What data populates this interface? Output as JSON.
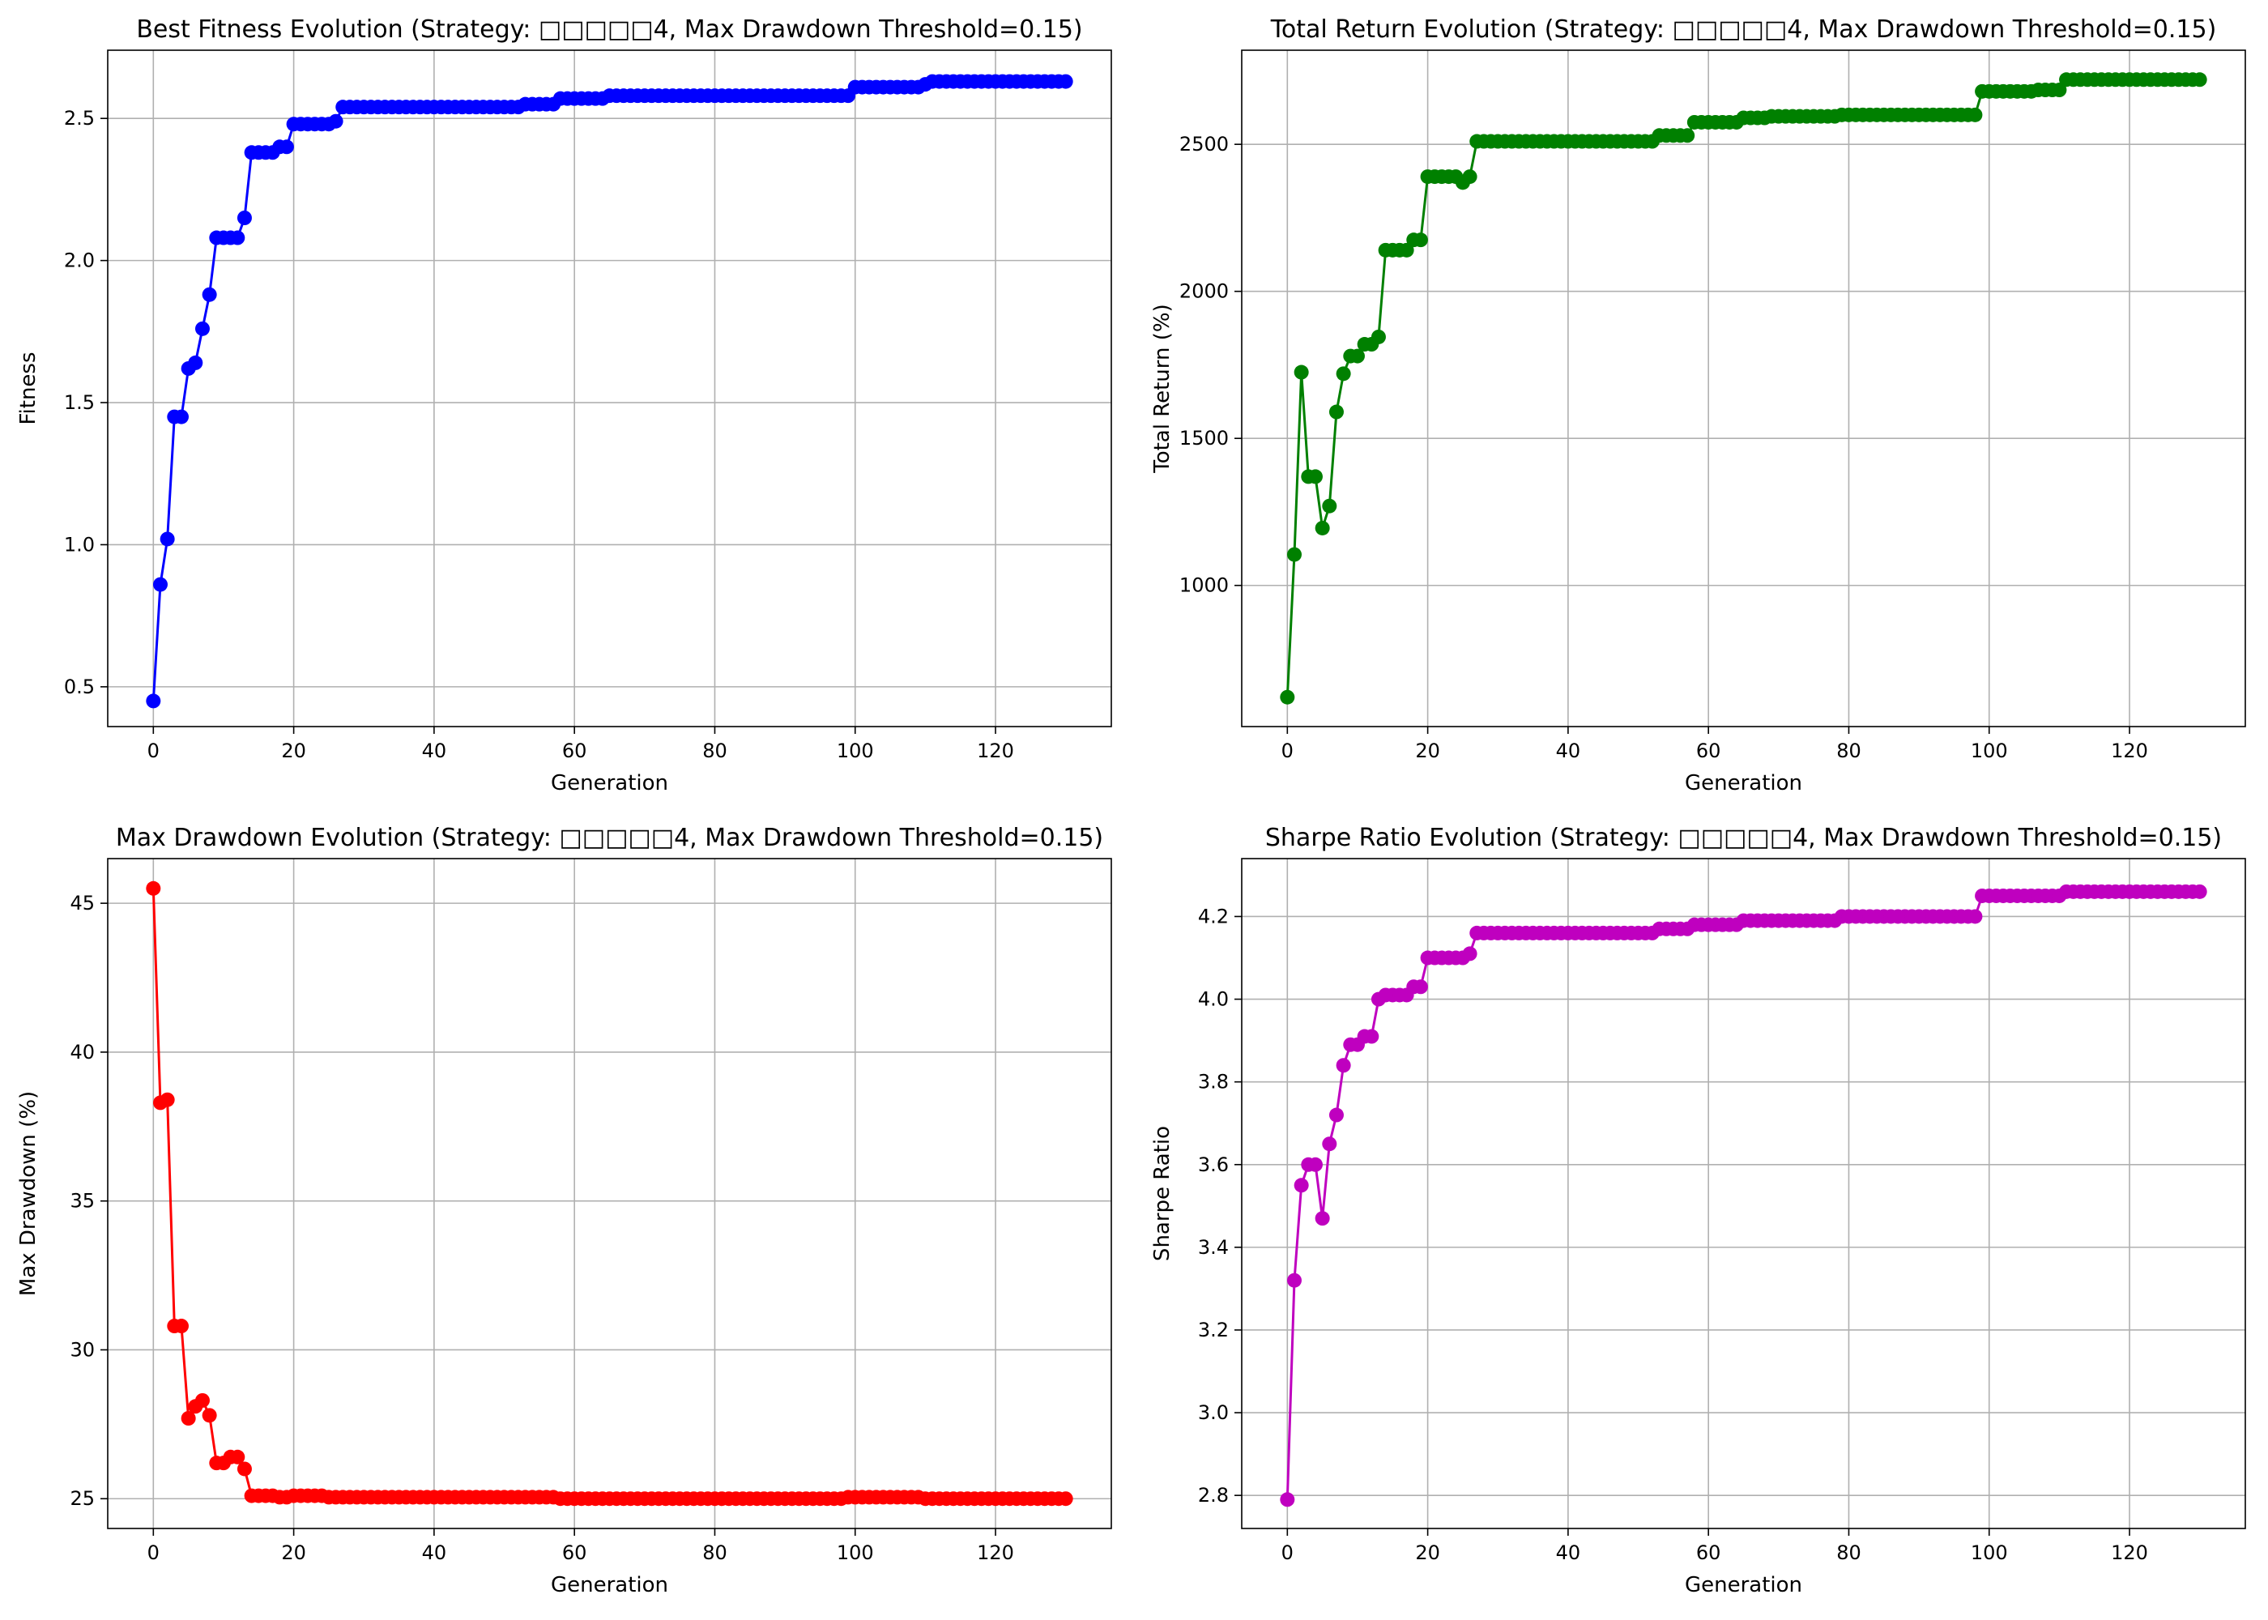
{
  "chart_data": [
    {
      "type": "line",
      "title": "Best Fitness Evolution (Strategy: □□□□□4, Max Drawdown Threshold=0.15)",
      "xlabel": "Generation",
      "ylabel": "Fitness",
      "xlim": [
        -6.5,
        136.5
      ],
      "ylim": [
        0.36,
        2.74
      ],
      "xticks": [
        0,
        20,
        40,
        60,
        80,
        100,
        120
      ],
      "yticks": [
        0.5,
        1.0,
        1.5,
        2.0,
        2.5
      ],
      "ytick_labels": [
        "0.5",
        "1.0",
        "1.5",
        "2.0",
        "2.5"
      ],
      "grid": true,
      "color": "#0000ff",
      "x_start": 0,
      "values": [
        0.45,
        0.86,
        1.02,
        1.45,
        1.45,
        1.62,
        1.64,
        1.76,
        1.88,
        2.08,
        2.08,
        2.08,
        2.08,
        2.15,
        2.38,
        2.38,
        2.38,
        2.38,
        2.4,
        2.4,
        2.48,
        2.48,
        2.48,
        2.48,
        2.48,
        2.48,
        2.49,
        2.54,
        2.54,
        2.54,
        2.54,
        2.54,
        2.54,
        2.54,
        2.54,
        2.54,
        2.54,
        2.54,
        2.54,
        2.54,
        2.54,
        2.54,
        2.54,
        2.54,
        2.54,
        2.54,
        2.54,
        2.54,
        2.54,
        2.54,
        2.54,
        2.54,
        2.54,
        2.55,
        2.55,
        2.55,
        2.55,
        2.55,
        2.57,
        2.57,
        2.57,
        2.57,
        2.57,
        2.57,
        2.57,
        2.58,
        2.58,
        2.58,
        2.58,
        2.58,
        2.58,
        2.58,
        2.58,
        2.58,
        2.58,
        2.58,
        2.58,
        2.58,
        2.58,
        2.58,
        2.58,
        2.58,
        2.58,
        2.58,
        2.58,
        2.58,
        2.58,
        2.58,
        2.58,
        2.58,
        2.58,
        2.58,
        2.58,
        2.58,
        2.58,
        2.58,
        2.58,
        2.58,
        2.58,
        2.58,
        2.61,
        2.61,
        2.61,
        2.61,
        2.61,
        2.61,
        2.61,
        2.61,
        2.61,
        2.61,
        2.62,
        2.63,
        2.63,
        2.63,
        2.63,
        2.63,
        2.63,
        2.63,
        2.63,
        2.63,
        2.63,
        2.63,
        2.63,
        2.63,
        2.63,
        2.63,
        2.63,
        2.63,
        2.63,
        2.63,
        2.63
      ]
    },
    {
      "type": "line",
      "title": "Total Return Evolution (Strategy: □□□□□4, Max Drawdown Threshold=0.15)",
      "xlabel": "Generation",
      "ylabel": "Total Return (%)",
      "xlim": [
        -6.5,
        136.5
      ],
      "ylim": [
        520,
        2820
      ],
      "xticks": [
        0,
        20,
        40,
        60,
        80,
        100,
        120
      ],
      "yticks": [
        1000,
        1500,
        2000,
        2500
      ],
      "ytick_labels": [
        "1000",
        "1500",
        "2000",
        "2500"
      ],
      "grid": true,
      "color": "#008000",
      "x_start": 0,
      "values": [
        620,
        1105,
        1725,
        1370,
        1370,
        1195,
        1270,
        1590,
        1720,
        1780,
        1780,
        1820,
        1820,
        1845,
        2140,
        2140,
        2140,
        2140,
        2175,
        2175,
        2390,
        2390,
        2390,
        2390,
        2390,
        2370,
        2390,
        2510,
        2510,
        2510,
        2510,
        2510,
        2510,
        2510,
        2510,
        2510,
        2510,
        2510,
        2510,
        2510,
        2510,
        2510,
        2510,
        2510,
        2510,
        2510,
        2510,
        2510,
        2510,
        2510,
        2510,
        2510,
        2510,
        2530,
        2530,
        2530,
        2530,
        2530,
        2575,
        2575,
        2575,
        2575,
        2575,
        2575,
        2575,
        2590,
        2590,
        2590,
        2590,
        2595,
        2595,
        2595,
        2595,
        2595,
        2595,
        2595,
        2595,
        2595,
        2595,
        2600,
        2600,
        2600,
        2600,
        2600,
        2600,
        2600,
        2600,
        2600,
        2600,
        2600,
        2600,
        2600,
        2600,
        2600,
        2600,
        2600,
        2600,
        2600,
        2600,
        2680,
        2680,
        2680,
        2680,
        2680,
        2680,
        2680,
        2680,
        2685,
        2685,
        2685,
        2685,
        2720,
        2720,
        2720,
        2720,
        2720,
        2720,
        2720,
        2720,
        2720,
        2720,
        2720,
        2720,
        2720,
        2720,
        2720,
        2720,
        2720,
        2720,
        2720,
        2720
      ]
    },
    {
      "type": "line",
      "title": "Max Drawdown Evolution (Strategy: □□□□□4, Max Drawdown Threshold=0.15)",
      "xlabel": "Generation",
      "ylabel": "Max Drawdown (%)",
      "xlim": [
        -6.5,
        136.5
      ],
      "ylim": [
        24.0,
        46.5
      ],
      "xticks": [
        0,
        20,
        40,
        60,
        80,
        100,
        120
      ],
      "yticks": [
        25,
        30,
        35,
        40,
        45
      ],
      "ytick_labels": [
        "25",
        "30",
        "35",
        "40",
        "45"
      ],
      "grid": true,
      "color": "#ff0000",
      "x_start": 0,
      "values": [
        45.5,
        38.3,
        38.4,
        30.8,
        30.8,
        27.7,
        28.1,
        28.3,
        27.8,
        26.2,
        26.2,
        26.4,
        26.4,
        26.0,
        25.1,
        25.1,
        25.1,
        25.1,
        25.05,
        25.05,
        25.1,
        25.1,
        25.1,
        25.1,
        25.1,
        25.05,
        25.05,
        25.05,
        25.05,
        25.05,
        25.05,
        25.05,
        25.05,
        25.05,
        25.05,
        25.05,
        25.05,
        25.05,
        25.05,
        25.05,
        25.05,
        25.05,
        25.05,
        25.05,
        25.05,
        25.05,
        25.05,
        25.05,
        25.05,
        25.05,
        25.05,
        25.05,
        25.05,
        25.05,
        25.05,
        25.05,
        25.05,
        25.05,
        25.0,
        25.0,
        25.0,
        25.0,
        25.0,
        25.0,
        25.0,
        25.0,
        25.0,
        25.0,
        25.0,
        25.0,
        25.0,
        25.0,
        25.0,
        25.0,
        25.0,
        25.0,
        25.0,
        25.0,
        25.0,
        25.0,
        25.0,
        25.0,
        25.0,
        25.0,
        25.0,
        25.0,
        25.0,
        25.0,
        25.0,
        25.0,
        25.0,
        25.0,
        25.0,
        25.0,
        25.0,
        25.0,
        25.0,
        25.0,
        25.0,
        25.05,
        25.05,
        25.05,
        25.05,
        25.05,
        25.05,
        25.05,
        25.05,
        25.05,
        25.05,
        25.05,
        25.0,
        25.0,
        25.0,
        25.0,
        25.0,
        25.0,
        25.0,
        25.0,
        25.0,
        25.0,
        25.0,
        25.0,
        25.0,
        25.0,
        25.0,
        25.0,
        25.0,
        25.0,
        25.0,
        25.0,
        25.0
      ]
    },
    {
      "type": "line",
      "title": "Sharpe Ratio Evolution (Strategy: □□□□□4, Max Drawdown Threshold=0.15)",
      "xlabel": "Generation",
      "ylabel": "Sharpe Ratio",
      "xlim": [
        -6.5,
        136.5
      ],
      "ylim": [
        2.72,
        4.34
      ],
      "xticks": [
        0,
        20,
        40,
        60,
        80,
        100,
        120
      ],
      "yticks": [
        2.8,
        3.0,
        3.2,
        3.4,
        3.6,
        3.8,
        4.0,
        4.2
      ],
      "ytick_labels": [
        "2.8",
        "3.0",
        "3.2",
        "3.4",
        "3.6",
        "3.8",
        "4.0",
        "4.2"
      ],
      "grid": true,
      "color": "#bf00bf",
      "x_start": 0,
      "values": [
        2.79,
        3.32,
        3.55,
        3.6,
        3.6,
        3.47,
        3.65,
        3.72,
        3.84,
        3.89,
        3.89,
        3.91,
        3.91,
        4.0,
        4.01,
        4.01,
        4.01,
        4.01,
        4.03,
        4.03,
        4.1,
        4.1,
        4.1,
        4.1,
        4.1,
        4.1,
        4.11,
        4.16,
        4.16,
        4.16,
        4.16,
        4.16,
        4.16,
        4.16,
        4.16,
        4.16,
        4.16,
        4.16,
        4.16,
        4.16,
        4.16,
        4.16,
        4.16,
        4.16,
        4.16,
        4.16,
        4.16,
        4.16,
        4.16,
        4.16,
        4.16,
        4.16,
        4.16,
        4.17,
        4.17,
        4.17,
        4.17,
        4.17,
        4.18,
        4.18,
        4.18,
        4.18,
        4.18,
        4.18,
        4.18,
        4.19,
        4.19,
        4.19,
        4.19,
        4.19,
        4.19,
        4.19,
        4.19,
        4.19,
        4.19,
        4.19,
        4.19,
        4.19,
        4.19,
        4.2,
        4.2,
        4.2,
        4.2,
        4.2,
        4.2,
        4.2,
        4.2,
        4.2,
        4.2,
        4.2,
        4.2,
        4.2,
        4.2,
        4.2,
        4.2,
        4.2,
        4.2,
        4.2,
        4.2,
        4.25,
        4.25,
        4.25,
        4.25,
        4.25,
        4.25,
        4.25,
        4.25,
        4.25,
        4.25,
        4.25,
        4.25,
        4.26,
        4.26,
        4.26,
        4.26,
        4.26,
        4.26,
        4.26,
        4.26,
        4.26,
        4.26,
        4.26,
        4.26,
        4.26,
        4.26,
        4.26,
        4.26,
        4.26,
        4.26,
        4.26,
        4.26
      ]
    }
  ]
}
